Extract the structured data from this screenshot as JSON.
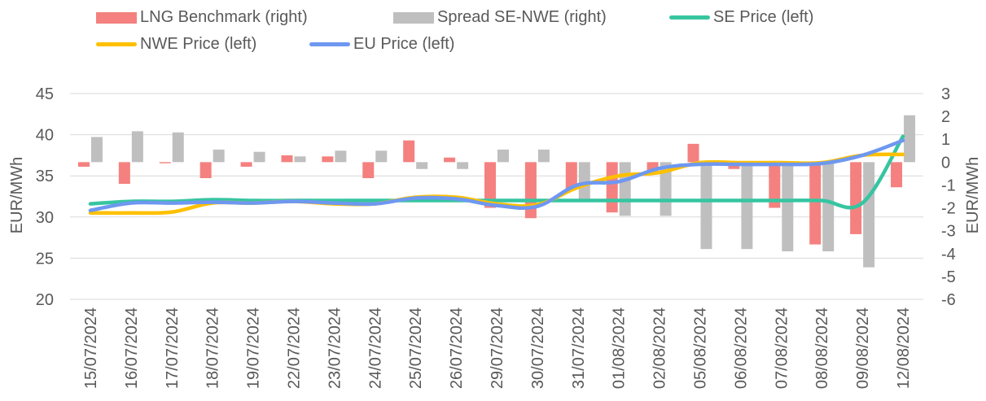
{
  "chart_data": {
    "type": "bar",
    "categories": [
      "15/07/2024",
      "16/07/2024",
      "17/07/2024",
      "18/07/2024",
      "19/07/2024",
      "22/07/2024",
      "23/07/2024",
      "24/07/2024",
      "25/07/2024",
      "26/07/2024",
      "29/07/2024",
      "30/07/2024",
      "31/07/2024",
      "01/08/2024",
      "02/08/2024",
      "05/08/2024",
      "06/08/2024",
      "07/08/2024",
      "08/08/2024",
      "09/08/2024",
      "12/08/2024"
    ],
    "ylabel_left": "EUR/MWh",
    "ylabel_right": "EUR/MWh",
    "ylim_left": [
      20,
      45
    ],
    "ylim_right": [
      -6,
      3
    ],
    "yticks_left": [
      "45",
      "40",
      "35",
      "30",
      "25",
      "20"
    ],
    "yticks_right": [
      "3",
      "2",
      "1",
      "0",
      "-1",
      "-2",
      "-3",
      "-4",
      "-5",
      "-6"
    ],
    "grid": true,
    "legend_position": "top",
    "series": [
      {
        "name": "LNG Benchmark (right)",
        "kind": "bar",
        "axis": "right",
        "color": "#F4817F",
        "values": [
          -0.2,
          -0.95,
          -0.05,
          -0.7,
          -0.2,
          0.3,
          0.25,
          -0.7,
          0.95,
          0.2,
          -2.0,
          -2.45,
          -1.2,
          -2.2,
          -0.4,
          0.8,
          -0.3,
          -2.0,
          -3.6,
          -3.15,
          -1.1
        ]
      },
      {
        "name": "Spread SE-NWE (right)",
        "kind": "bar",
        "axis": "right",
        "color": "#BFBFBF",
        "values": [
          1.1,
          1.35,
          1.3,
          0.55,
          0.45,
          0.25,
          0.5,
          0.5,
          -0.3,
          -0.3,
          0.55,
          0.55,
          -1.75,
          -2.35,
          -2.35,
          -3.8,
          -3.8,
          -3.9,
          -3.9,
          -4.6,
          2.05
        ]
      },
      {
        "name": "SE Price (left)",
        "kind": "line",
        "axis": "left",
        "color": "#36C5A1",
        "values": [
          31.6,
          31.9,
          31.9,
          32.1,
          32.0,
          32.0,
          32.0,
          32.0,
          32.0,
          32.0,
          32.0,
          32.0,
          32.0,
          32.0,
          32.0,
          32.0,
          32.0,
          32.0,
          32.0,
          31.7,
          39.8
        ]
      },
      {
        "name": "NWE Price (left)",
        "kind": "line",
        "axis": "left",
        "color": "#FFC000",
        "values": [
          30.5,
          30.5,
          30.6,
          31.7,
          31.7,
          31.9,
          31.6,
          31.6,
          32.4,
          32.4,
          31.6,
          31.5,
          33.6,
          35.0,
          35.4,
          36.6,
          36.6,
          36.6,
          36.6,
          37.5,
          37.6
        ]
      },
      {
        "name": "EU Price (left)",
        "kind": "line",
        "axis": "left",
        "color": "#6E98F0",
        "values": [
          30.8,
          31.7,
          31.7,
          31.8,
          31.7,
          31.9,
          31.7,
          31.6,
          32.3,
          32.2,
          31.4,
          31.3,
          33.9,
          34.3,
          35.9,
          36.4,
          36.4,
          36.4,
          36.5,
          37.5,
          39.3
        ]
      }
    ]
  }
}
